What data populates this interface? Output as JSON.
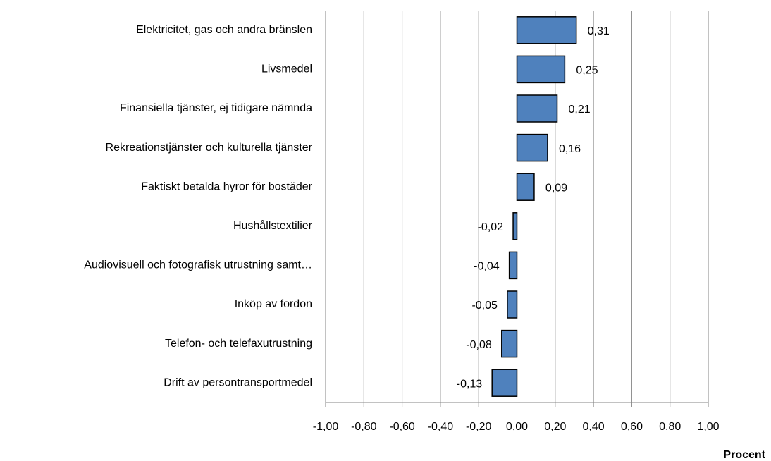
{
  "chart_data": {
    "type": "barh",
    "categories": [
      "Elektricitet, gas och andra bränslen",
      "Livsmedel",
      "Finansiella tjänster, ej tidigare nämnda",
      "Rekreationstjänster och kulturella tjänster",
      "Faktiskt betalda hyror för bostäder",
      "Hushållstextilier",
      "Audiovisuell och fotografisk utrustning samt…",
      "Inköp av fordon",
      "Telefon- och telefaxutrustning",
      "Drift av persontransportmedel"
    ],
    "values": [
      0.31,
      0.25,
      0.21,
      0.16,
      0.09,
      -0.02,
      -0.04,
      -0.05,
      -0.08,
      -0.13
    ],
    "value_labels": [
      "0,31",
      "0,25",
      "0,21",
      "0,16",
      "0,09",
      "-0,02",
      "-0,04",
      "-0,05",
      "-0,08",
      "-0,13"
    ],
    "color": "#4f81bd",
    "xlabel": "Procent",
    "xlim": [
      -1,
      1
    ],
    "xticks": [
      {
        "value": -1,
        "label": "-1,00"
      },
      {
        "value": -0.8,
        "label": "-0,80"
      },
      {
        "value": -0.6,
        "label": "-0,60"
      },
      {
        "value": -0.4,
        "label": "-0,40"
      },
      {
        "value": -0.2,
        "label": "-0,20"
      },
      {
        "value": 0,
        "label": "0,00"
      },
      {
        "value": 0.2,
        "label": "0,20"
      },
      {
        "value": 0.4,
        "label": "0,40"
      },
      {
        "value": 0.6,
        "label": "0,60"
      },
      {
        "value": 0.8,
        "label": "0,80"
      },
      {
        "value": 1,
        "label": "1,00"
      }
    ],
    "grid": true
  }
}
